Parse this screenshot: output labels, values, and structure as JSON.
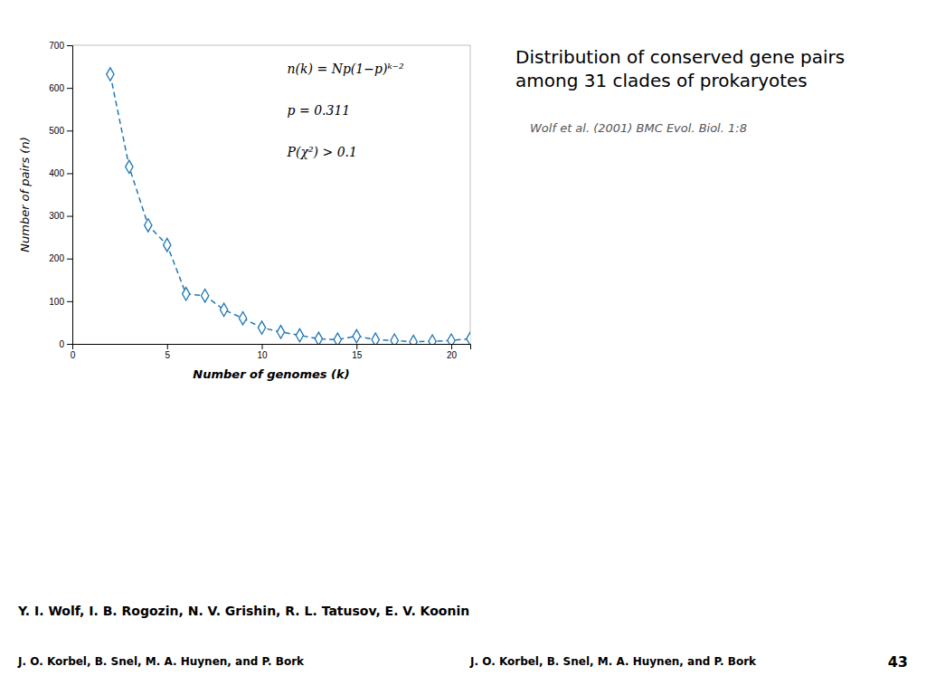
{
  "chart_data": {
    "type": "line",
    "title": "Distribution of conserved gene pairs among 31 clades of prokaryotes",
    "subtitle": "Wolf et al. (2001) BMC Evol. Biol. 1:8",
    "x": [
      2,
      3,
      4,
      5,
      6,
      7,
      8,
      9,
      10,
      11,
      12,
      13,
      14,
      15,
      16,
      17,
      18,
      19,
      20,
      21
    ],
    "values": [
      632,
      415,
      278,
      232,
      117,
      113,
      80,
      60,
      38,
      28,
      20,
      12,
      10,
      18,
      10,
      8,
      5,
      6,
      8,
      12
    ],
    "xlabel": "Number of genomes (k)",
    "ylabel": "Number of pairs (n)",
    "xlim": [
      0,
      21
    ],
    "ylim": [
      0,
      700
    ],
    "xticks": [
      0,
      5,
      10,
      15,
      20
    ],
    "yticks": [
      0,
      100,
      200,
      300,
      400,
      500,
      600,
      700
    ],
    "grid": false,
    "marker": "diamond",
    "line_style": "dashed",
    "annotations": [
      "n(k) = Np(1−p)ᵏ⁻²",
      "p = 0.311",
      "P(χ²) > 0.1",
      "Y. I. Wolf, I. B. Rogozin, N. V. Grishin, R. L. Tatusov, E. V. Koonin",
      "J. O. Korbel, B. Snel, M. A. Huynen, and P. Bork",
      "J. O. Korbel, B. Snel, M. A. Huynen, and P. Bork",
      "43"
    ]
  }
}
